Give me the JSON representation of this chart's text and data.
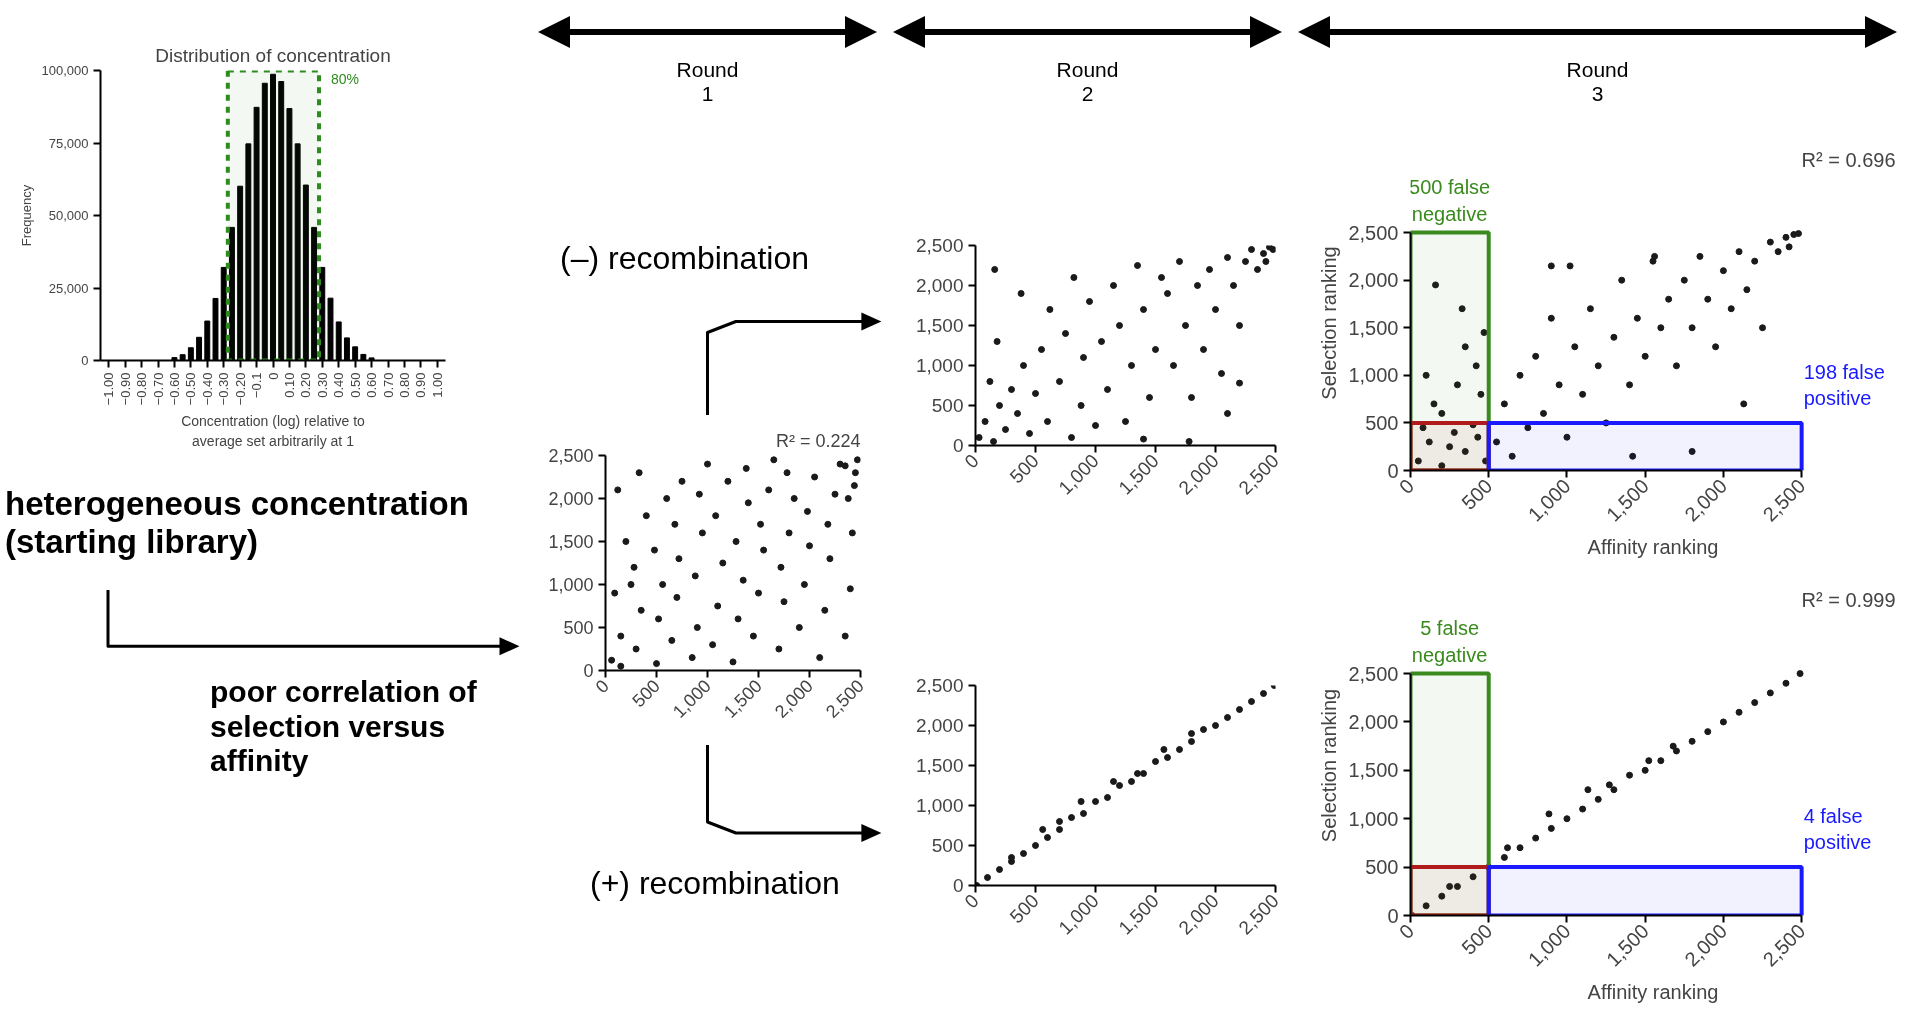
{
  "chart_data": [
    {
      "type": "other",
      "annotations": [
        "Round 1",
        "Round 2",
        "Round 3"
      ]
    },
    {
      "type": "histogram",
      "title": "Distribution of concentration",
      "xlabel": "Concentration (log) relative to average set arbitrarily at 1",
      "ylabel": "Frequency",
      "color": "#000000",
      "bins": [
        -1.025,
        -0.975,
        -0.925,
        -0.875,
        -0.825,
        -0.775,
        -0.725,
        -0.675,
        -0.625,
        -0.575,
        -0.525,
        -0.475,
        -0.425,
        -0.375,
        -0.325,
        -0.275,
        -0.225,
        -0.175,
        -0.125,
        -0.075,
        -0.025,
        0.025,
        0.075,
        0.125,
        0.175,
        0.225,
        0.275,
        0.325,
        0.375,
        0.425,
        0.475,
        0.525,
        0.575,
        0.625,
        0.675,
        0.725,
        0.775,
        0.825,
        0.875,
        0.925,
        0.975,
        1.025
      ],
      "values": [
        0,
        0,
        0,
        0,
        0,
        0,
        0,
        0,
        1000,
        2000,
        4400,
        8000,
        13600,
        21400,
        32100,
        45900,
        60100,
        74700,
        87300,
        95600,
        98700,
        96200,
        86900,
        74700,
        60500,
        45900,
        32100,
        21500,
        13300,
        7800,
        4700,
        2100,
        900,
        0,
        0,
        0,
        0,
        0,
        0,
        0,
        0
      ],
      "xlim": [
        -1.05,
        1.05
      ],
      "ylim": [
        0,
        100000
      ],
      "xticks": [
        {
          "value": -1.0,
          "label": "−1.00"
        },
        {
          "value": -0.9,
          "label": "−0.90"
        },
        {
          "value": -0.8,
          "label": "−0.80"
        },
        {
          "value": -0.7,
          "label": "−0.70"
        },
        {
          "value": -0.6,
          "label": "−0.60"
        },
        {
          "value": -0.5,
          "label": "−0.50"
        },
        {
          "value": -0.4,
          "label": "−0.40"
        },
        {
          "value": -0.3,
          "label": "−0.30"
        },
        {
          "value": -0.2,
          "label": "−0.20"
        },
        {
          "value": -0.1,
          "label": "−0.1"
        },
        0,
        {
          "value": 0.1,
          "label": "0.10"
        },
        {
          "value": 0.2,
          "label": "0.20"
        },
        {
          "value": 0.3,
          "label": "0.30"
        },
        {
          "value": 0.4,
          "label": "0.40"
        },
        {
          "value": 0.5,
          "label": "0.50"
        },
        {
          "value": 0.6,
          "label": "0.60"
        },
        {
          "value": 0.7,
          "label": "0.70"
        },
        {
          "value": 0.8,
          "label": "0.80"
        },
        {
          "value": 0.9,
          "label": "0.90"
        },
        {
          "value": 1.0,
          "label": "1.00"
        }
      ],
      "yticks": [
        0,
        {
          "value": 25000,
          "label": "25,000"
        },
        {
          "value": 50000,
          "label": "50,000"
        },
        {
          "value": 75000,
          "label": "75,000"
        },
        {
          "value": 100000,
          "label": "100,000"
        }
      ],
      "bands": [
        {
          "axis": "x",
          "from": -0.275,
          "to": 0.28,
          "label": "80%",
          "color": "#2e8b1e"
        }
      ]
    },
    {
      "type": "scatter",
      "title": "R² = 0.224",
      "marker": "circle",
      "xlim": [
        0,
        2500
      ],
      "ylim": [
        0,
        2500
      ],
      "xticks": [
        0,
        500,
        {
          "value": 1000,
          "label": "1,000"
        },
        {
          "value": 1500,
          "label": "1,500"
        },
        {
          "value": 2000,
          "label": "2,000"
        },
        {
          "value": 2500,
          "label": "2,500"
        }
      ],
      "yticks": [
        0,
        500,
        {
          "value": 1000,
          "label": "1,000"
        },
        {
          "value": 1500,
          "label": "1,500"
        },
        {
          "value": 2000,
          "label": "2,000"
        },
        {
          "value": 2500,
          "label": "2,500"
        }
      ],
      "annotations": [
        "heterogeneous concentration (starting library)",
        "poor correlation of selection versus affinity"
      ],
      "series": [
        {
          "color": "#1a1a1a",
          "x": [
            60,
            150,
            90,
            200,
            120,
            300,
            350,
            280,
            400,
            330,
            500,
            520,
            560,
            480,
            600,
            650,
            700,
            720,
            680,
            750,
            850,
            900,
            880,
            950,
            920,
            1000,
            1050,
            1100,
            1150,
            1080,
            1200,
            1250,
            1300,
            1350,
            1280,
            1400,
            1380,
            1450,
            1500,
            1550,
            1520,
            1600,
            1650,
            1700,
            1750,
            1720,
            1800,
            1850,
            1780,
            1900,
            1950,
            2000,
            1980,
            2050,
            2100,
            2150,
            2200,
            2180,
            2250,
            2300,
            2350,
            2400,
            2420,
            2380,
            2450,
            2470,
            2440,
            2350,
            150,
            250
          ],
          "values": [
            120,
            400,
            900,
            1500,
            2100,
            250,
            700,
            1200,
            1800,
            2300,
            80,
            600,
            1000,
            1400,
            2000,
            350,
            850,
            1300,
            1700,
            2200,
            150,
            500,
            1100,
            1600,
            2050,
            2400,
            300,
            750,
            1250,
            1800,
            2200,
            100,
            600,
            1050,
            1500,
            1950,
            2350,
            400,
            900,
            1400,
            1700,
            2100,
            2450,
            250,
            800,
            1200,
            1600,
            2000,
            2300,
            500,
            1000,
            1450,
            1850,
            2250,
            150,
            700,
            1300,
            1700,
            2050,
            2400,
            400,
            950,
            1600,
            2000,
            2300,
            2450,
            2150,
            2380,
            50,
            1000
          ]
        }
      ]
    },
    {
      "type": "scatter",
      "marker": "circle",
      "xlim": [
        0,
        2500
      ],
      "ylim": [
        0,
        2500
      ],
      "xticks": [
        0,
        500,
        {
          "value": 1000,
          "label": "1,000"
        },
        {
          "value": 1500,
          "label": "1,500"
        },
        {
          "value": 2000,
          "label": "2,000"
        },
        {
          "value": 2500,
          "label": "2,500"
        }
      ],
      "yticks": [
        0,
        500,
        {
          "value": 1000,
          "label": "1,000"
        },
        {
          "value": 1500,
          "label": "1,500"
        },
        {
          "value": 2000,
          "label": "2,000"
        },
        {
          "value": 2500,
          "label": "2,500"
        }
      ],
      "annotations": [
        "(–) recombination"
      ],
      "series": [
        {
          "color": "#1a1a1a",
          "x": [
            30,
            80,
            150,
            200,
            120,
            250,
            300,
            180,
            160,
            350,
            400,
            380,
            450,
            500,
            550,
            600,
            620,
            700,
            750,
            800,
            820,
            880,
            900,
            950,
            1000,
            1050,
            1100,
            1150,
            1200,
            1250,
            1300,
            1350,
            1400,
            1450,
            1500,
            1550,
            1600,
            1650,
            1700,
            1750,
            1800,
            1850,
            1900,
            1950,
            2000,
            2050,
            2100,
            2150,
            2200,
            2250,
            2300,
            2350,
            2400,
            2450,
            2480,
            2420,
            2100,
            1780,
            1400,
            2200
          ],
          "values": [
            100,
            300,
            50,
            500,
            800,
            200,
            700,
            1300,
            2200,
            400,
            1000,
            1900,
            150,
            650,
            1200,
            300,
            1700,
            800,
            1400,
            100,
            2100,
            500,
            1100,
            1800,
            250,
            1300,
            700,
            2000,
            1500,
            300,
            1000,
            2250,
            1700,
            600,
            1200,
            2100,
            1900,
            1000,
            2300,
            1500,
            600,
            2000,
            1200,
            2200,
            1700,
            900,
            2350,
            2000,
            1500,
            2300,
            2450,
            2200,
            2400,
            2480,
            2450,
            2300,
            400,
            50,
            80,
            780
          ]
        }
      ]
    },
    {
      "type": "scatter",
      "marker": "circle",
      "xlim": [
        0,
        2500
      ],
      "ylim": [
        0,
        2500
      ],
      "xticks": [
        0,
        500,
        {
          "value": 1000,
          "label": "1,000"
        },
        {
          "value": 1500,
          "label": "1,500"
        },
        {
          "value": 2000,
          "label": "2,000"
        },
        {
          "value": 2500,
          "label": "2,500"
        }
      ],
      "yticks": [
        0,
        500,
        {
          "value": 1000,
          "label": "1,000"
        },
        {
          "value": 1500,
          "label": "1,500"
        },
        {
          "value": 2000,
          "label": "2,000"
        },
        {
          "value": 2500,
          "label": "2,500"
        }
      ],
      "annotations": [
        "(+) recombination"
      ],
      "series": [
        {
          "color": "#1a1a1a",
          "x": [
            10,
            100,
            200,
            300,
            400,
            500,
            600,
            700,
            800,
            900,
            1000,
            1100,
            1200,
            1300,
            1400,
            1500,
            1600,
            1700,
            1800,
            1900,
            2000,
            2100,
            2200,
            2300,
            2400,
            2490,
            880,
            1150,
            560,
            1570,
            1350,
            700,
            300,
            1800
          ],
          "values": [
            0,
            100,
            200,
            300,
            400,
            500,
            600,
            700,
            850,
            900,
            1050,
            1100,
            1250,
            1300,
            1400,
            1550,
            1600,
            1700,
            1800,
            1950,
            2000,
            2100,
            2200,
            2300,
            2400,
            2500,
            1050,
            1300,
            700,
            1700,
            1400,
            800,
            350,
            1900
          ]
        }
      ]
    },
    {
      "type": "scatter",
      "title": "R² = 0.696",
      "xlabel": "Affinity ranking",
      "ylabel": "Selection ranking",
      "marker": "circle",
      "xlim": [
        0,
        2500
      ],
      "ylim": [
        0,
        2500
      ],
      "xticks": [
        0,
        500,
        {
          "value": 1000,
          "label": "1,000"
        },
        {
          "value": 1500,
          "label": "1,500"
        },
        {
          "value": 2000,
          "label": "2,000"
        },
        {
          "value": 2500,
          "label": "2,500"
        }
      ],
      "yticks": [
        0,
        500,
        {
          "value": 1000,
          "label": "1,000"
        },
        {
          "value": 1500,
          "label": "1,500"
        },
        {
          "value": 2000,
          "label": "2,000"
        },
        {
          "value": 2500,
          "label": "2,500"
        }
      ],
      "bands": [
        {
          "axis": "x",
          "from": 0,
          "to": 500,
          "label": "500 false negative",
          "color": "#3a8a1e"
        },
        {
          "axis": "y",
          "from": 0,
          "to": 500,
          "color": "#b01c1c"
        },
        {
          "axis": "y",
          "from": 0,
          "to": 500,
          "label": "198 false positive",
          "color": "#1a1aff"
        }
      ],
      "series": [
        {
          "color": "#1a1a1a",
          "x": [
            50,
            120,
            200,
            280,
            350,
            430,
            480,
            80,
            250,
            400,
            150,
            300,
            420,
            100,
            350,
            160,
            330,
            470,
            200,
            450,
            550,
            600,
            650,
            700,
            750,
            800,
            850,
            900,
            950,
            1000,
            1050,
            1100,
            1150,
            1200,
            1250,
            1300,
            1350,
            1400,
            1450,
            1500,
            1550,
            1600,
            1650,
            1700,
            1750,
            1800,
            1850,
            1900,
            1950,
            2000,
            2050,
            2100,
            2150,
            2200,
            2250,
            2300,
            2350,
            2400,
            2450,
            2480,
            2420,
            1800,
            1420,
            2130,
            900,
            1020,
            1560
          ],
          "values": [
            100,
            300,
            50,
            400,
            200,
            350,
            100,
            450,
            250,
            480,
            700,
            900,
            1100,
            1000,
            1300,
            1950,
            1700,
            1450,
            600,
            800,
            300,
            700,
            150,
            1000,
            450,
            1200,
            600,
            1600,
            900,
            350,
            1300,
            800,
            1700,
            1100,
            500,
            1400,
            2000,
            900,
            1600,
            1200,
            2200,
            1500,
            1800,
            1100,
            2000,
            1500,
            2250,
            1800,
            1300,
            2100,
            1700,
            2300,
            1900,
            2200,
            1500,
            2400,
            2300,
            2450,
            2480,
            2490,
            2350,
            200,
            150,
            700,
            2150,
            2150,
            2250
          ]
        }
      ]
    },
    {
      "type": "scatter",
      "title": "R² = 0.999",
      "xlabel": "Affinity ranking",
      "ylabel": "Selection ranking",
      "marker": "circle",
      "xlim": [
        0,
        2500
      ],
      "ylim": [
        0,
        2500
      ],
      "xticks": [
        0,
        500,
        {
          "value": 1000,
          "label": "1,000"
        },
        {
          "value": 1500,
          "label": "1,500"
        },
        {
          "value": 2000,
          "label": "2,000"
        },
        {
          "value": 2500,
          "label": "2,500"
        }
      ],
      "yticks": [
        0,
        500,
        {
          "value": 1000,
          "label": "1,000"
        },
        {
          "value": 1500,
          "label": "1,500"
        },
        {
          "value": 2000,
          "label": "2,000"
        },
        {
          "value": 2500,
          "label": "2,500"
        }
      ],
      "bands": [
        {
          "axis": "x",
          "from": 0,
          "to": 500,
          "label": "5 false negative",
          "color": "#3a8a1e"
        },
        {
          "axis": "y",
          "from": 0,
          "to": 500,
          "color": "#b01c1c"
        },
        {
          "axis": "y",
          "from": 0,
          "to": 500,
          "label": "4 false positive",
          "color": "#1a1aff"
        }
      ],
      "series": [
        {
          "color": "#1a1a1a",
          "x": [
            10,
            100,
            200,
            300,
            400,
            500,
            600,
            700,
            800,
            900,
            1000,
            1100,
            1200,
            1300,
            1400,
            1500,
            1600,
            1700,
            1800,
            1900,
            2000,
            2100,
            2200,
            2300,
            2400,
            2490,
            1134,
            885,
            1679,
            1523,
            1271,
            620,
            250
          ],
          "values": [
            0,
            100,
            200,
            300,
            400,
            500,
            600,
            700,
            800,
            900,
            1000,
            1100,
            1200,
            1300,
            1450,
            1500,
            1600,
            1700,
            1800,
            1900,
            2000,
            2100,
            2200,
            2300,
            2400,
            2500,
            1300,
            1050,
            1750,
            1600,
            1350,
            700,
            300
          ]
        }
      ]
    }
  ]
}
